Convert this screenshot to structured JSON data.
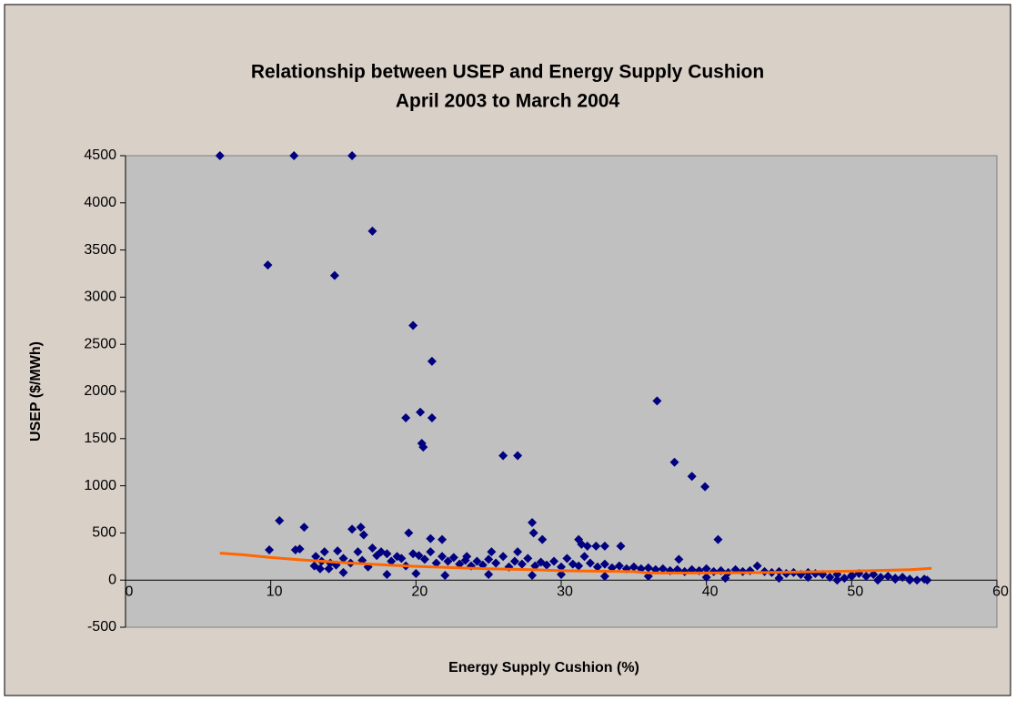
{
  "chart_data": {
    "type": "scatter",
    "title": "Relationship between USEP and Energy Supply Cushion",
    "subtitle": "April 2003 to March 2004",
    "x_label": "Energy Supply Cushion (%)",
    "y_label": "USEP ($/MWh)",
    "xlim": [
      0,
      60
    ],
    "xticks": [
      0,
      10,
      20,
      30,
      40,
      50,
      60
    ],
    "ylim": [
      -500,
      4500
    ],
    "yticks": [
      -500,
      0,
      500,
      1000,
      1500,
      2000,
      2500,
      3000,
      3500,
      4000,
      4500
    ],
    "series": [
      {
        "color": "#000080",
        "marker": "diamond",
        "x": [
          6.5,
          11.6,
          15.6,
          17,
          9.8,
          14.4,
          19.8,
          21.1,
          20.3,
          21.1,
          19.3,
          20.4,
          20.5,
          36.6,
          26,
          27,
          37.8,
          39,
          39.9,
          40.8,
          10.6,
          12.3,
          9.9,
          12,
          11.7,
          15.6,
          16.2,
          16.4,
          19.5,
          28,
          28.1,
          28.7,
          31.2,
          31.4,
          31.8,
          32.4,
          33,
          34.1,
          38.1,
          21,
          21.8,
          13.1,
          13.4,
          13.7,
          14.1,
          14.6,
          25.2,
          27,
          23.5,
          43.5,
          41.3,
          47,
          49,
          51.8,
          53,
          54,
          55.2,
          50,
          13,
          13.5,
          14,
          14.5,
          15,
          15.5,
          16,
          16.3,
          16.7,
          17,
          17.3,
          17.6,
          18,
          18.3,
          18.7,
          19,
          19.3,
          19.8,
          20.2,
          20.6,
          21,
          21.4,
          21.8,
          22.2,
          22.6,
          23,
          23.4,
          23.8,
          24.2,
          24.6,
          25,
          25.5,
          26,
          26.4,
          26.8,
          27.3,
          27.7,
          28.2,
          28.6,
          29,
          29.5,
          30,
          30.4,
          30.8,
          31.2,
          31.6,
          32,
          32.5,
          33,
          33.5,
          34,
          34.5,
          35,
          35.5,
          36,
          36.5,
          37,
          37.5,
          38,
          38.5,
          39,
          39.5,
          40,
          40.5,
          41,
          41.5,
          42,
          42.5,
          43,
          44,
          44.5,
          45,
          45.5,
          46,
          46.5,
          47,
          47.5,
          48,
          48.5,
          49,
          49.5,
          50,
          50.5,
          51,
          51.5,
          52,
          52.5,
          53,
          53.5,
          54,
          54.5,
          55,
          15,
          18,
          20,
          22,
          25,
          28,
          30,
          33,
          36,
          40,
          45
        ],
        "values": [
          4500,
          4500,
          4500,
          3700,
          3340,
          3230,
          2700,
          2320,
          1780,
          1720,
          1720,
          1450,
          1410,
          1900,
          1320,
          1320,
          1250,
          1100,
          990,
          430,
          630,
          560,
          320,
          330,
          320,
          540,
          560,
          480,
          500,
          610,
          500,
          430,
          430,
          380,
          360,
          360,
          360,
          360,
          220,
          440,
          430,
          250,
          120,
          300,
          180,
          310,
          300,
          300,
          250,
          150,
          20,
          30,
          0,
          0,
          10,
          0,
          0,
          40,
          150,
          200,
          120,
          160,
          230,
          180,
          300,
          210,
          140,
          340,
          260,
          300,
          280,
          200,
          250,
          230,
          150,
          280,
          260,
          220,
          300,
          180,
          250,
          200,
          240,
          170,
          210,
          150,
          200,
          160,
          220,
          180,
          250,
          140,
          200,
          170,
          230,
          150,
          190,
          160,
          200,
          140,
          230,
          170,
          150,
          250,
          180,
          140,
          170,
          130,
          150,
          120,
          140,
          120,
          130,
          110,
          120,
          100,
          110,
          90,
          110,
          100,
          120,
          90,
          100,
          80,
          110,
          90,
          100,
          90,
          80,
          90,
          70,
          80,
          60,
          80,
          70,
          60,
          30,
          60,
          20,
          50,
          70,
          40,
          60,
          30,
          40,
          20,
          30,
          10,
          0,
          10,
          80,
          60,
          70,
          50,
          60,
          50,
          60,
          40,
          40,
          30,
          20
        ]
      },
      {
        "color": "#ff6600",
        "mode": "line",
        "x": [
          6.5,
          8,
          10,
          12,
          15,
          18,
          20,
          23,
          25,
          28,
          30,
          35,
          36,
          40,
          44,
          50,
          54,
          55.5
        ],
        "values": [
          285,
          270,
          240,
          215,
          185,
          160,
          145,
          130,
          120,
          110,
          100,
          90,
          75,
          75,
          80,
          95,
          110,
          125
        ]
      }
    ]
  }
}
